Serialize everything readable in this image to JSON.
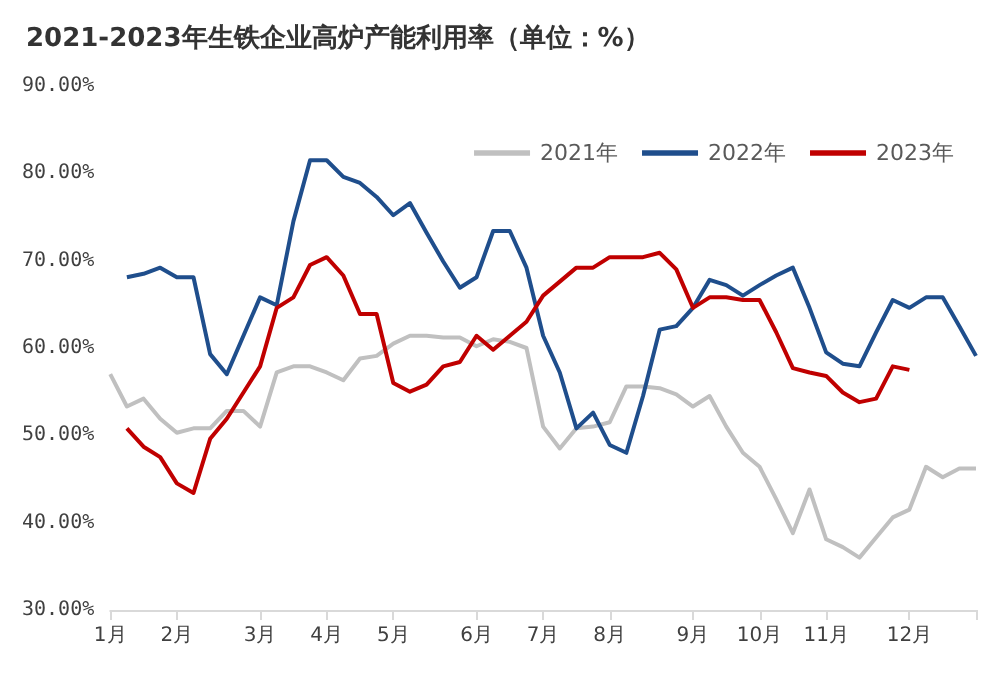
{
  "chart_data": {
    "type": "line",
    "title": "2021-2023年生铁企业高炉产能利用率（单位：%）",
    "categories": [
      "1月",
      null,
      null,
      null,
      "2月",
      null,
      null,
      null,
      null,
      "3月",
      null,
      null,
      null,
      "4月",
      null,
      null,
      null,
      "5月",
      null,
      null,
      null,
      null,
      "6月",
      null,
      null,
      null,
      "7月",
      null,
      null,
      null,
      "8月",
      null,
      null,
      null,
      null,
      "9月",
      null,
      null,
      null,
      "10月",
      null,
      null,
      null,
      "11月",
      null,
      null,
      null,
      null,
      "12月",
      null,
      null,
      null,
      null
    ],
    "series": [
      {
        "name": "2021年",
        "color": "#c0c0c0",
        "values": [
          57.0,
          53.3,
          54.2,
          51.9,
          50.3,
          50.8,
          50.8,
          52.8,
          52.8,
          51.0,
          57.2,
          57.9,
          57.9,
          57.2,
          56.3,
          58.8,
          59.1,
          60.5,
          61.4,
          61.4,
          61.2,
          61.2,
          60.2,
          61.0,
          60.7,
          60.0,
          51.0,
          48.5,
          50.8,
          51.0,
          51.5,
          55.6,
          55.6,
          55.4,
          54.7,
          53.3,
          54.5,
          51.0,
          48.0,
          46.4,
          42.7,
          38.8,
          43.8,
          38.1,
          37.2,
          36.0,
          38.3,
          40.6,
          41.5,
          46.4,
          45.2,
          46.2,
          46.2
        ]
      },
      {
        "name": "2022年",
        "color": "#1f4e8c",
        "values": [
          null,
          68.1,
          68.5,
          69.2,
          68.1,
          68.1,
          59.3,
          57.0,
          61.4,
          65.8,
          64.9,
          74.5,
          81.5,
          81.5,
          79.6,
          78.9,
          77.3,
          75.2,
          76.6,
          73.2,
          69.9,
          66.9,
          68.1,
          73.4,
          73.4,
          69.2,
          61.4,
          57.2,
          50.8,
          52.6,
          48.9,
          48.0,
          54.5,
          62.1,
          62.5,
          64.6,
          67.8,
          67.2,
          66.0,
          67.2,
          68.3,
          69.2,
          64.6,
          59.5,
          58.2,
          57.9,
          61.8,
          65.5,
          64.6,
          65.8,
          65.8,
          62.5,
          59.1
        ]
      },
      {
        "name": "2023年",
        "color": "#c00000",
        "values": [
          null,
          50.8,
          48.7,
          47.5,
          44.5,
          43.4,
          49.6,
          51.9,
          54.9,
          57.9,
          64.6,
          65.8,
          69.5,
          70.4,
          68.3,
          63.9,
          63.9,
          56.0,
          55.0,
          55.8,
          57.9,
          58.4,
          61.4,
          59.8,
          61.4,
          63.0,
          66.0,
          67.6,
          69.2,
          69.2,
          70.4,
          70.4,
          70.4,
          70.9,
          69.0,
          64.6,
          65.8,
          65.8,
          65.5,
          65.5,
          61.8,
          57.7,
          57.2,
          56.8,
          54.9,
          53.8,
          54.2,
          57.9,
          57.5,
          null,
          null,
          null,
          null
        ]
      }
    ],
    "ylim": [
      30,
      90
    ],
    "yticks": [
      {
        "value": 30,
        "label": "30.00%"
      },
      {
        "value": 40,
        "label": "40.00%"
      },
      {
        "value": 50,
        "label": "50.00%"
      },
      {
        "value": 60,
        "label": "60.00%"
      },
      {
        "value": 70,
        "label": "70.00%"
      },
      {
        "value": 80,
        "label": "80.00%"
      },
      {
        "value": 90,
        "label": "90.00%"
      }
    ],
    "grid": false,
    "legend": "top right",
    "marker": "none",
    "line_style": "solid"
  }
}
